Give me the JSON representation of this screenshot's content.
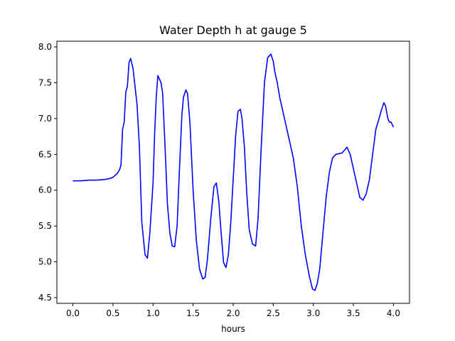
{
  "chart_data": {
    "type": "line",
    "title": "Water Depth h at gauge 5",
    "xlabel": "hours",
    "ylabel": "",
    "xlim": [
      -0.2,
      4.2
    ],
    "ylim": [
      4.42,
      8.08
    ],
    "xticks": [
      0.0,
      0.5,
      1.0,
      1.5,
      2.0,
      2.5,
      3.0,
      3.5,
      4.0
    ],
    "xtick_labels": [
      "0.0",
      "0.5",
      "1.0",
      "1.5",
      "2.0",
      "2.5",
      "3.0",
      "3.5",
      "4.0"
    ],
    "yticks": [
      4.5,
      5.0,
      5.5,
      6.0,
      6.5,
      7.0,
      7.5,
      8.0
    ],
    "ytick_labels": [
      "4.5",
      "5.0",
      "5.5",
      "6.0",
      "6.5",
      "7.0",
      "7.5",
      "8.0"
    ],
    "grid": false,
    "series": [
      {
        "color": "#0000ff",
        "x": [
          0.0,
          0.1,
          0.2,
          0.3,
          0.4,
          0.45,
          0.5,
          0.55,
          0.58,
          0.6,
          0.62,
          0.64,
          0.66,
          0.68,
          0.7,
          0.72,
          0.75,
          0.78,
          0.8,
          0.83,
          0.86,
          0.9,
          0.93,
          0.96,
          1.0,
          1.02,
          1.04,
          1.06,
          1.08,
          1.1,
          1.12,
          1.15,
          1.18,
          1.21,
          1.24,
          1.27,
          1.3,
          1.33,
          1.36,
          1.38,
          1.41,
          1.43,
          1.46,
          1.5,
          1.54,
          1.58,
          1.62,
          1.65,
          1.68,
          1.72,
          1.76,
          1.79,
          1.82,
          1.85,
          1.88,
          1.91,
          1.94,
          1.97,
          2.0,
          2.03,
          2.06,
          2.09,
          2.11,
          2.14,
          2.17,
          2.2,
          2.24,
          2.28,
          2.31,
          2.35,
          2.39,
          2.43,
          2.47,
          2.5,
          2.52,
          2.55,
          2.58,
          2.62,
          2.66,
          2.7,
          2.75,
          2.8,
          2.85,
          2.9,
          2.95,
          2.99,
          3.02,
          3.05,
          3.08,
          3.12,
          3.16,
          3.2,
          3.24,
          3.28,
          3.32,
          3.36,
          3.39,
          3.42,
          3.46,
          3.5,
          3.54,
          3.58,
          3.62,
          3.66,
          3.7,
          3.74,
          3.78,
          3.82,
          3.85,
          3.88,
          3.9,
          3.93,
          3.95,
          3.97,
          4.0
        ],
        "y": [
          6.13,
          6.13,
          6.14,
          6.14,
          6.15,
          6.16,
          6.18,
          6.23,
          6.28,
          6.35,
          6.85,
          6.95,
          7.37,
          7.45,
          7.78,
          7.84,
          7.7,
          7.4,
          7.2,
          6.6,
          5.55,
          5.1,
          5.05,
          5.4,
          6.1,
          6.8,
          7.3,
          7.6,
          7.55,
          7.5,
          7.35,
          6.6,
          5.8,
          5.4,
          5.22,
          5.21,
          5.5,
          6.3,
          7.05,
          7.3,
          7.4,
          7.35,
          6.95,
          6.0,
          5.3,
          4.9,
          4.76,
          4.78,
          5.05,
          5.6,
          6.05,
          6.1,
          5.85,
          5.4,
          4.99,
          4.92,
          5.1,
          5.55,
          6.15,
          6.75,
          7.1,
          7.13,
          7.0,
          6.6,
          5.95,
          5.45,
          5.25,
          5.22,
          5.6,
          6.6,
          7.5,
          7.85,
          7.9,
          7.8,
          7.65,
          7.5,
          7.3,
          7.1,
          6.9,
          6.7,
          6.45,
          6.05,
          5.5,
          5.1,
          4.8,
          4.62,
          4.6,
          4.7,
          4.9,
          5.4,
          5.9,
          6.25,
          6.45,
          6.5,
          6.51,
          6.52,
          6.56,
          6.6,
          6.5,
          6.3,
          6.1,
          5.9,
          5.86,
          5.95,
          6.15,
          6.5,
          6.85,
          7.0,
          7.12,
          7.22,
          7.18,
          7.0,
          6.95,
          6.95,
          6.88
        ]
      }
    ]
  }
}
